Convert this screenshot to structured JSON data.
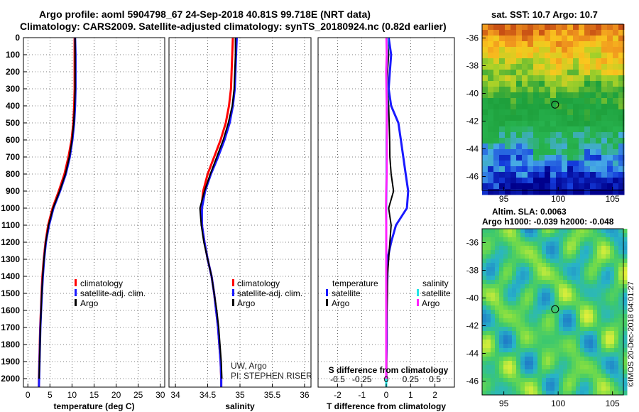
{
  "header": {
    "line1": "Argo profile: aoml 5904798_67 24-Sep-2018 40.81S 99.718E (NRT data)",
    "line2": "Climatology: CARS2009. Satellite-adjusted climatology: synTS_20180924.nc (0.82d earlier)"
  },
  "colors": {
    "climatology": "#ff0000",
    "satellite": "#1a1aff",
    "argo": "#000000",
    "salinity_satellite": "#22e5e5",
    "salinity_argo": "#ff22ff"
  },
  "depth_axis": {
    "ticks": [
      0,
      100,
      200,
      300,
      400,
      500,
      600,
      700,
      800,
      900,
      1000,
      1100,
      1200,
      1300,
      1400,
      1500,
      1600,
      1700,
      1800,
      1900,
      2000
    ],
    "ylim": [
      0,
      2050
    ]
  },
  "chart_data": [
    {
      "type": "line",
      "panel": "temperature",
      "xlabel": "temperature (deg C)",
      "ylabel": "depth",
      "xlim": [
        -1,
        31
      ],
      "xticks": [
        0,
        5,
        10,
        15,
        20,
        25,
        30
      ],
      "legend": [
        "climatology",
        "satellite-adj. clim.",
        "Argo"
      ],
      "series": [
        {
          "name": "climatology",
          "color_key": "climatology",
          "depth": [
            0,
            100,
            200,
            300,
            400,
            500,
            600,
            700,
            800,
            900,
            1000,
            1100,
            1200,
            1300,
            1400,
            1500,
            1600,
            1700,
            1800,
            1900,
            2000,
            2050
          ],
          "values": [
            10.6,
            10.6,
            10.6,
            10.6,
            10.5,
            10.3,
            9.9,
            9.2,
            8.3,
            7.0,
            5.6,
            4.6,
            4.0,
            3.6,
            3.3,
            3.1,
            2.95,
            2.8,
            2.7,
            2.6,
            2.5,
            2.5
          ]
        },
        {
          "name": "satellite-adj. clim.",
          "color_key": "satellite",
          "depth": [
            0,
            100,
            200,
            300,
            400,
            500,
            600,
            700,
            800,
            900,
            1000,
            1100,
            1200,
            1300,
            1400,
            1500,
            1600,
            1700,
            1800,
            1900,
            2000,
            2050
          ],
          "values": [
            10.7,
            10.8,
            10.8,
            10.8,
            10.7,
            10.5,
            10.1,
            9.5,
            8.6,
            7.3,
            5.8,
            4.8,
            4.1,
            3.7,
            3.4,
            3.2,
            3.0,
            2.85,
            2.75,
            2.65,
            2.55,
            2.5
          ]
        },
        {
          "name": "Argo",
          "color_key": "argo",
          "depth": [
            0,
            100,
            200,
            300,
            400,
            500,
            600,
            700,
            800,
            900,
            1000,
            1100,
            1200,
            1300,
            1400,
            1500,
            1600,
            1700,
            1800,
            1900,
            2000
          ],
          "values": [
            10.7,
            10.7,
            10.7,
            10.7,
            10.6,
            10.4,
            10.0,
            9.4,
            8.5,
            7.2,
            5.7,
            4.7,
            4.05,
            3.65,
            3.35,
            3.15,
            3.0,
            2.85,
            2.75,
            2.65,
            2.55
          ]
        }
      ]
    },
    {
      "type": "line",
      "panel": "salinity",
      "xlabel": "salinity",
      "xlim": [
        33.9,
        36.1
      ],
      "xticks": [
        34,
        34.5,
        35,
        35.5,
        36
      ],
      "xticklabels": [
        "34",
        "34.5",
        "35",
        "35.5",
        "36"
      ],
      "legend": [
        "climatology",
        "satellite-adj. clim.",
        "Argo"
      ],
      "annotation": [
        "UW, Argo",
        "PI: STEPHEN RISER"
      ],
      "series": [
        {
          "name": "climatology",
          "color_key": "climatology",
          "depth": [
            0,
            100,
            200,
            300,
            400,
            500,
            600,
            700,
            800,
            900,
            1000,
            1100,
            1200,
            1300,
            1400,
            1500,
            1600,
            1700,
            1800,
            1900,
            2000,
            2050
          ],
          "values": [
            34.89,
            34.88,
            34.87,
            34.86,
            34.83,
            34.78,
            34.7,
            34.6,
            34.5,
            34.43,
            34.4,
            34.41,
            34.45,
            34.5,
            34.56,
            34.6,
            34.63,
            34.66,
            34.68,
            34.7,
            34.71,
            34.71
          ]
        },
        {
          "name": "satellite-adj. clim.",
          "color_key": "satellite",
          "depth": [
            0,
            100,
            200,
            300,
            400,
            500,
            600,
            700,
            800,
            900,
            1000,
            1100,
            1200,
            1300,
            1400,
            1500,
            1600,
            1700,
            1800,
            1900,
            2000,
            2050
          ],
          "values": [
            34.95,
            34.94,
            34.93,
            34.92,
            34.89,
            34.84,
            34.76,
            34.66,
            34.55,
            34.46,
            34.41,
            34.41,
            34.45,
            34.5,
            34.56,
            34.6,
            34.63,
            34.66,
            34.68,
            34.7,
            34.71,
            34.71
          ]
        },
        {
          "name": "Argo",
          "color_key": "argo",
          "depth": [
            0,
            100,
            200,
            300,
            400,
            500,
            600,
            700,
            800,
            900,
            1000,
            1100,
            1200,
            1300,
            1400,
            1500,
            1600,
            1700,
            1800,
            1900,
            2000
          ],
          "values": [
            34.93,
            34.93,
            34.92,
            34.91,
            34.88,
            34.82,
            34.74,
            34.64,
            34.54,
            34.45,
            34.38,
            34.4,
            34.44,
            34.5,
            34.56,
            34.6,
            34.64,
            34.67,
            34.69,
            34.71,
            34.72
          ]
        }
      ]
    },
    {
      "type": "line",
      "panel": "difference",
      "xlabel": "T difference from climatology",
      "top_label": "S difference from climatology",
      "xlim": [
        -2.8,
        2.8
      ],
      "xticks": [
        -2,
        -1,
        0,
        1,
        2
      ],
      "s_xticks": [
        -0.5,
        -0.25,
        0,
        0.25,
        0.5
      ],
      "s_xticklabels": [
        "-0.5",
        "-0.25",
        "0",
        "0.25",
        "0.5"
      ],
      "legend_temperature": {
        "title": "temperature",
        "items": [
          "satellite",
          "Argo"
        ]
      },
      "legend_salinity": {
        "title": "salinity",
        "items": [
          "satellite",
          "Argo"
        ]
      },
      "series": [
        {
          "name": "T satellite",
          "color_key": "satellite",
          "depth": [
            0,
            100,
            200,
            300,
            400,
            500,
            600,
            700,
            800,
            900,
            1000,
            1100,
            1200,
            1300,
            1400,
            1500,
            1600,
            1700,
            1800,
            1900,
            2000,
            2050
          ],
          "values": [
            0.1,
            0.2,
            0.15,
            0.1,
            0.2,
            0.5,
            0.6,
            0.7,
            0.8,
            0.9,
            0.85,
            0.4,
            0.2,
            0.05,
            0.05,
            0.02,
            0.02,
            0.02,
            0.02,
            0.0,
            0.0,
            0.0
          ]
        },
        {
          "name": "T Argo",
          "color_key": "argo",
          "depth": [
            0,
            100,
            200,
            300,
            400,
            500,
            600,
            700,
            800,
            900,
            1000,
            1100,
            1200,
            1300,
            1400,
            1500,
            1600,
            1700,
            1800,
            1900,
            2000
          ],
          "values": [
            0.05,
            0.1,
            0.05,
            0.05,
            0.1,
            0.12,
            0.14,
            0.15,
            0.2,
            0.3,
            0.1,
            0.2,
            0.15,
            0.1,
            0.05,
            0.05,
            0.03,
            0.02,
            0.02,
            0.02,
            0.02
          ]
        },
        {
          "name": "S satellite",
          "color_key": "salinity_satellite",
          "depth": [
            0,
            100,
            200,
            300,
            400,
            500,
            600,
            700,
            800,
            900,
            1000,
            1100,
            1200,
            1300,
            1400,
            1500,
            1600,
            1700,
            1800,
            1900,
            2000,
            2050
          ],
          "values": [
            0.05,
            0.04,
            0.0,
            0.03,
            0.04,
            0.02,
            0.01,
            0.01,
            0.01,
            0.01,
            0.0,
            0.0,
            0.0,
            0.0,
            0.0,
            0.0,
            0.0,
            0.0,
            0.0,
            0.0,
            0.0,
            0.0
          ]
        },
        {
          "name": "S Argo",
          "color_key": "salinity_argo",
          "depth": [
            0,
            100,
            200,
            300,
            400,
            500,
            600,
            700,
            800,
            900,
            1000,
            1100,
            1200,
            1300,
            1400,
            1500,
            1600,
            1700,
            1800,
            1900,
            2000
          ],
          "values": [
            0.01,
            0.02,
            0.0,
            0.01,
            0.02,
            0.02,
            0.02,
            0.02,
            0.02,
            0.0,
            -0.01,
            0.0,
            0.0,
            0.0,
            0.0,
            0.0,
            0.0,
            0.0,
            0.0,
            0.0,
            0.0
          ]
        }
      ]
    },
    {
      "type": "heatmap",
      "panel": "sst_map",
      "title": "sat. SST: 10.7 Argo: 10.7",
      "xlim": [
        93,
        106
      ],
      "ylim": [
        -47,
        -35
      ],
      "xticks": [
        95,
        100,
        105
      ],
      "yticks": [
        -36,
        -38,
        -40,
        -42,
        -44,
        -46
      ],
      "marker": {
        "lon": 99.718,
        "lat": -40.81
      }
    },
    {
      "type": "heatmap",
      "panel": "sla_map",
      "title": "Altim. SLA: 0.0063",
      "subtitle": "Argo h1000: -0.039 h2000: -0.048",
      "xlim": [
        93,
        106
      ],
      "ylim": [
        -47,
        -35
      ],
      "xticks": [
        95,
        100,
        105
      ],
      "yticks": [
        -36,
        -38,
        -40,
        -42,
        -44,
        -46
      ],
      "marker": {
        "lon": 99.718,
        "lat": -40.81
      }
    }
  ],
  "credit": "©IMOS 20-Dec-2018 04:01:27"
}
